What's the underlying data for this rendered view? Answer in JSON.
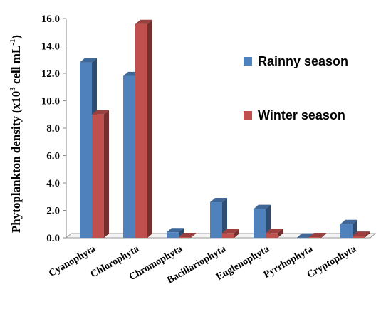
{
  "chart_data": {
    "type": "bar",
    "title": "",
    "xlabel": "",
    "ylabel": "Phytoplankton density (x10",
    "ylabel_sup": "3",
    "ylabel_mid": " cell mL",
    "ylabel_sup2": "-1",
    "ylabel_end": ")",
    "ylim": [
      0,
      16
    ],
    "yticks": [
      "0.0",
      "2.0",
      "4.0",
      "6.0",
      "8.0",
      "10.0",
      "12.0",
      "14.0",
      "16.0"
    ],
    "categories": [
      "Cyanophyta",
      "Chlorophyta",
      "Chromophyta",
      "Bacillariophyta",
      "Euglenophyta",
      "Pyrrhophyta",
      "Cryptophyta"
    ],
    "series": [
      {
        "name": "Rainny season",
        "color": "#4f81bd",
        "values": [
          12.8,
          11.8,
          0.4,
          2.6,
          2.1,
          0.02,
          1.0
        ]
      },
      {
        "name": "Winter season",
        "color": "#c0504d",
        "values": [
          9.0,
          15.6,
          0.05,
          0.35,
          0.35,
          0.05,
          0.15
        ]
      }
    ],
    "legend_position": "right",
    "grid": false
  }
}
